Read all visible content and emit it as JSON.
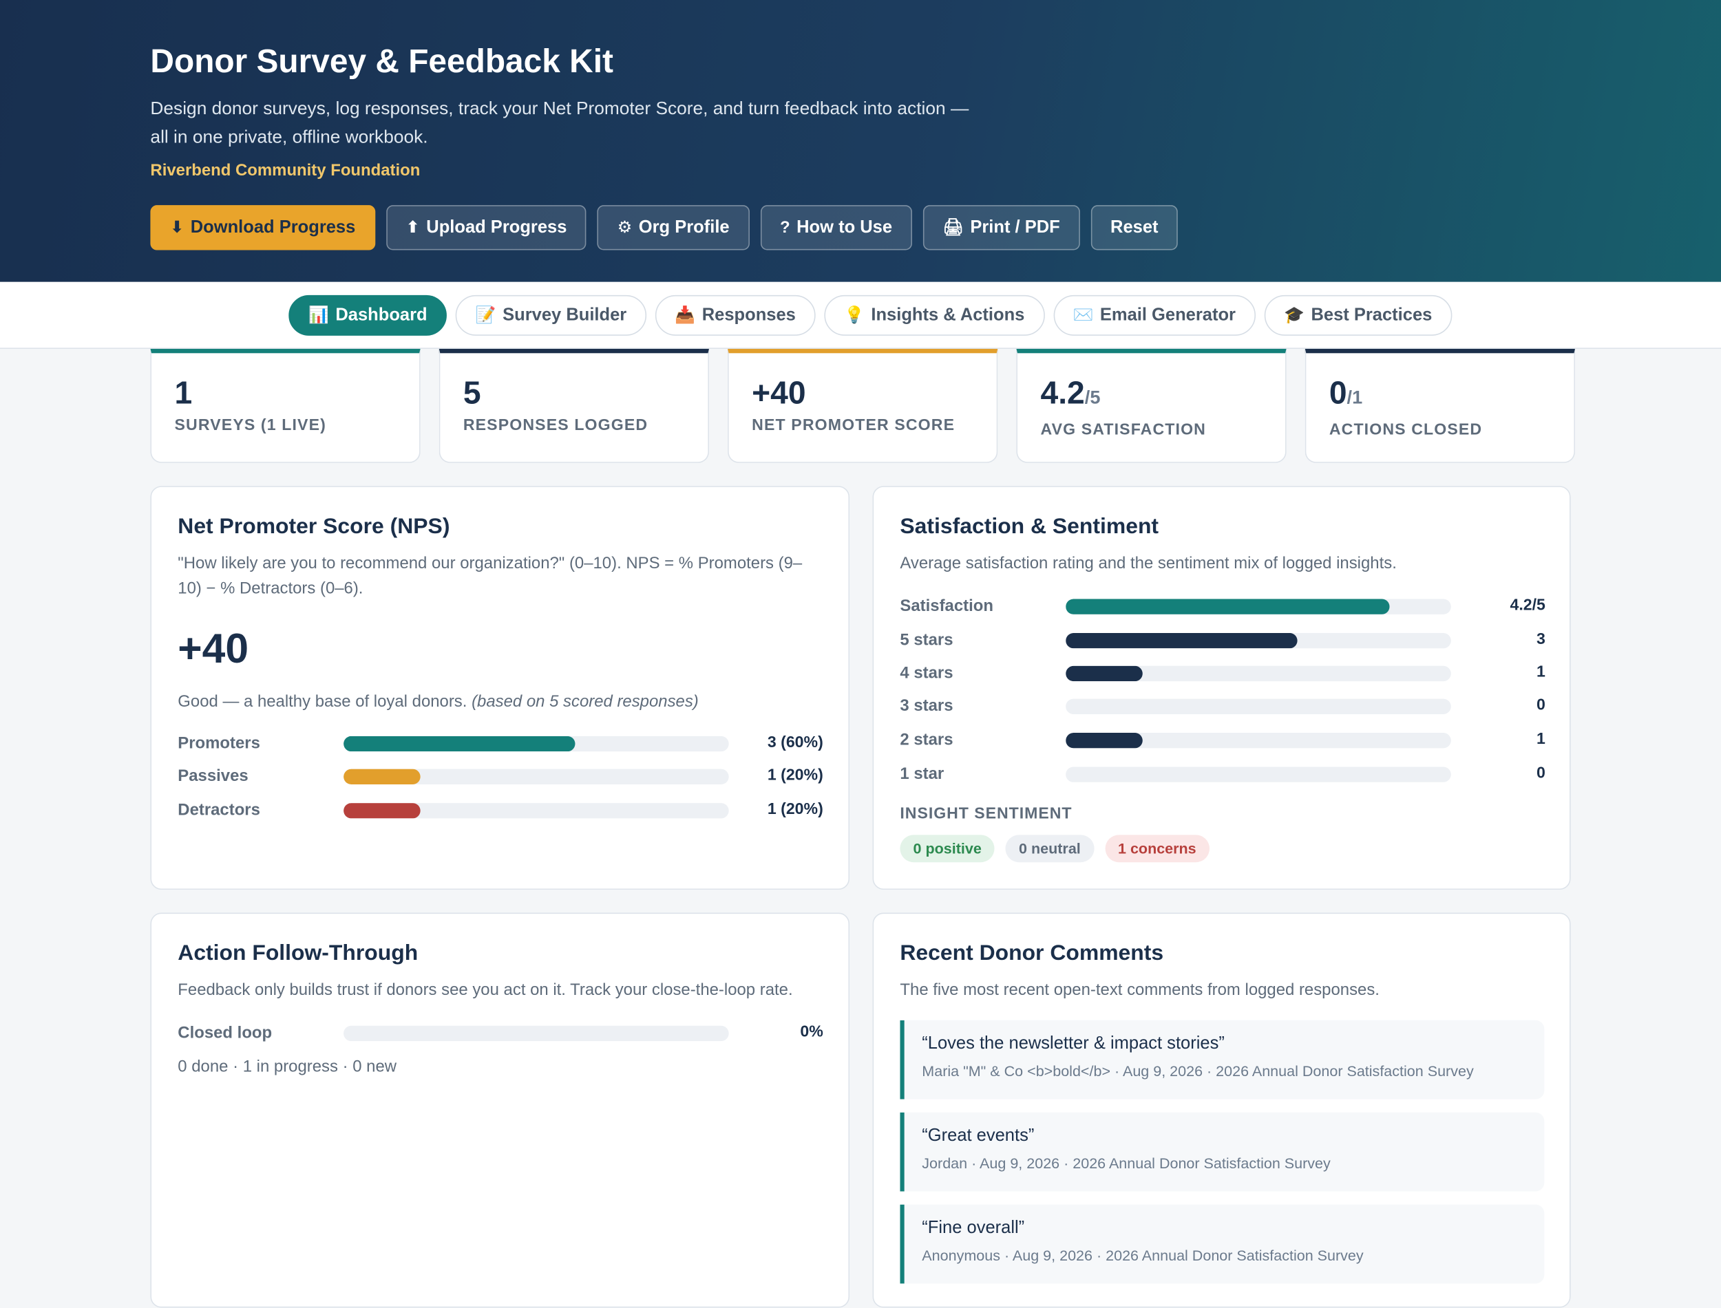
{
  "header": {
    "title": "Donor Survey & Feedback Kit",
    "subtitle": "Design donor surveys, log responses, track your Net Promoter Score, and turn feedback into action — all in one private, offline workbook.",
    "org_name": "Riverbend Community Foundation",
    "buttons": [
      {
        "label": "Download Progress",
        "icon": "⬇"
      },
      {
        "label": "Upload Progress",
        "icon": "⬆"
      },
      {
        "label": "Org Profile",
        "icon": "⚙"
      },
      {
        "label": "How to Use",
        "icon": "?"
      },
      {
        "label": "Print / PDF",
        "icon": "🖨"
      },
      {
        "label": "Reset",
        "icon": ""
      }
    ]
  },
  "tabs": [
    {
      "label": "Dashboard",
      "icon": "📊",
      "active": true
    },
    {
      "label": "Survey Builder",
      "icon": "📝",
      "active": false
    },
    {
      "label": "Responses",
      "icon": "📥",
      "active": false
    },
    {
      "label": "Insights & Actions",
      "icon": "💡",
      "active": false
    },
    {
      "label": "Email Generator",
      "icon": "✉️",
      "active": false
    },
    {
      "label": "Best Practices",
      "icon": "🎓",
      "active": false
    }
  ],
  "kpis": [
    {
      "value": "1",
      "suffix": "",
      "label": "SURVEYS (1 LIVE)"
    },
    {
      "value": "5",
      "suffix": "",
      "label": "RESPONSES LOGGED"
    },
    {
      "value": "+40",
      "suffix": "",
      "label": "NET PROMOTER SCORE"
    },
    {
      "value": "4.2",
      "suffix": "/5",
      "label": "AVG SATISFACTION"
    },
    {
      "value": "0",
      "suffix": "/1",
      "label": "ACTIONS CLOSED"
    }
  ],
  "nps": {
    "title": "Net Promoter Score (NPS)",
    "description": "\"How likely are you to recommend our organization?\" (0–10). NPS = % Promoters (9–10) − % Detractors (0–6).",
    "score": "+40",
    "summary": "Good — a healthy base of loyal donors.",
    "summary_detail": "(based on 5 scored responses)",
    "rows": [
      {
        "label": "Promoters",
        "value": "3 (60%)",
        "fraction": 0.6,
        "color": "#14807a"
      },
      {
        "label": "Passives",
        "value": "1 (20%)",
        "fraction": 0.2,
        "color": "#e29f2c"
      },
      {
        "label": "Detractors",
        "value": "1 (20%)",
        "fraction": 0.2,
        "color": "#b7403c"
      }
    ]
  },
  "satisfaction": {
    "title": "Satisfaction & Sentiment",
    "description": "Average satisfaction rating and the sentiment mix of logged insights.",
    "rows": [
      {
        "label": "Satisfaction",
        "value": "4.2/5",
        "fraction": 0.84,
        "color": "#14807a"
      },
      {
        "label": "5 stars",
        "value": "3",
        "fraction": 0.6,
        "color": "#1b2f4a"
      },
      {
        "label": "4 stars",
        "value": "1",
        "fraction": 0.2,
        "color": "#1b2f4a"
      },
      {
        "label": "3 stars",
        "value": "0",
        "fraction": 0.0,
        "color": "#1b2f4a"
      },
      {
        "label": "2 stars",
        "value": "1",
        "fraction": 0.2,
        "color": "#1b2f4a"
      },
      {
        "label": "1 star",
        "value": "0",
        "fraction": 0.0,
        "color": "#1b2f4a"
      }
    ],
    "sentiment_label": "INSIGHT SENTIMENT",
    "sentiment": [
      {
        "label": "0 positive",
        "bg": "#e3f3e8",
        "fg": "#2c8a4f"
      },
      {
        "label": "0 neutral",
        "bg": "#edf0f4",
        "fg": "#5e6b7a"
      },
      {
        "label": "1 concerns",
        "bg": "#fbe6e6",
        "fg": "#b7403c"
      }
    ]
  },
  "action": {
    "title": "Action Follow-Through",
    "description": "Feedback only builds trust if donors see you act on it. Track your close-the-loop rate.",
    "row": {
      "label": "Closed loop",
      "value": "0%",
      "fraction": 0.0,
      "color": "#14807a"
    },
    "counts": "0 done · 1 in progress · 0 new"
  },
  "comments": {
    "title": "Recent Donor Comments",
    "description": "The five most recent open-text comments from logged responses.",
    "items": [
      {
        "text": "“Loves the newsletter & impact stories”",
        "meta": "Maria \"M\" & Co <b>bold</b> · Aug 9, 2026 · 2026 Annual Donor Satisfaction Survey"
      },
      {
        "text": "“Great events”",
        "meta": "Jordan · Aug 9, 2026 · 2026 Annual Donor Satisfaction Survey"
      },
      {
        "text": "“Fine overall”",
        "meta": "Anonymous · Aug 9, 2026 · 2026 Annual Donor Satisfaction Survey"
      }
    ]
  }
}
